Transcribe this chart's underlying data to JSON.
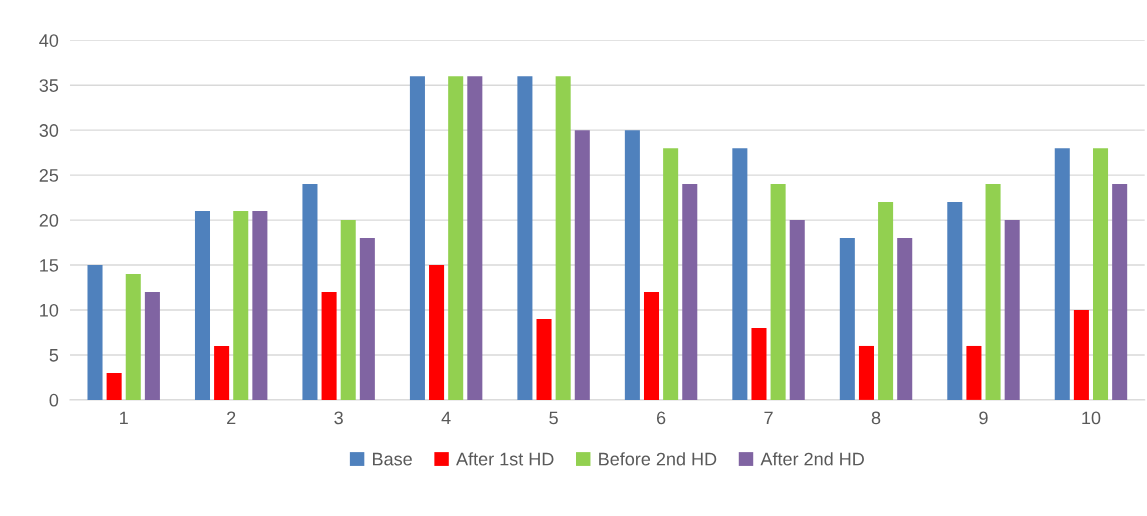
{
  "chart_data": {
    "type": "bar",
    "categories": [
      "1",
      "2",
      "3",
      "4",
      "5",
      "6",
      "7",
      "8",
      "9",
      "10"
    ],
    "series": [
      {
        "name": "Base",
        "color": "#4f81bd",
        "values": [
          15,
          21,
          24,
          36,
          36,
          30,
          28,
          18,
          22,
          28
        ]
      },
      {
        "name": "After 1st HD",
        "color": "#ff0000",
        "values": [
          3,
          6,
          12,
          15,
          9,
          12,
          8,
          6,
          6,
          10
        ]
      },
      {
        "name": "Before 2nd HD",
        "color": "#92d050",
        "values": [
          14,
          21,
          20,
          36,
          36,
          28,
          24,
          22,
          24,
          28
        ]
      },
      {
        "name": "After 2nd HD",
        "color": "#8064a2",
        "values": [
          12,
          21,
          18,
          36,
          30,
          24,
          20,
          18,
          20,
          24
        ]
      }
    ],
    "ylim": [
      0,
      40
    ],
    "yticks": [
      0,
      5,
      10,
      15,
      20,
      25,
      30,
      35,
      40
    ],
    "grid": "y",
    "legend": "bottom"
  }
}
